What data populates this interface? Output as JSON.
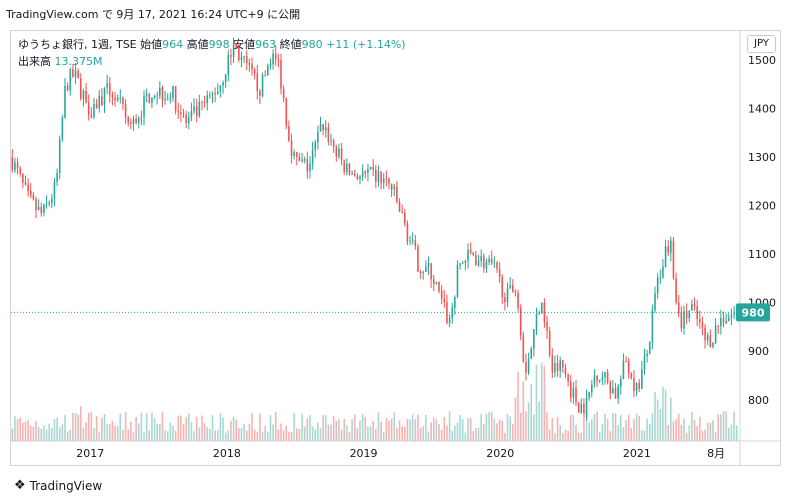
{
  "header": {
    "publish_text": "TradingView.com で 9月 17, 2021 16:24 UTC+9 に公開"
  },
  "legend": {
    "symbol": "ゆうちょ銀行, 1週, TSE",
    "open_label": "始値",
    "open_value": "964",
    "high_label": "高値",
    "high_value": "998",
    "low_label": "安値",
    "low_value": "963",
    "close_label": "終値",
    "close_value": "980",
    "change": "+11 (+1.14%)",
    "volume_label": "出来高",
    "volume_value": "13.375M"
  },
  "currency_button": "JPY",
  "footer": {
    "brand": "TradingView",
    "logo_icon": "tradingview-logo-icon"
  },
  "colors": {
    "up": "#26a69a",
    "down": "#ef5350",
    "up_vol": "#a7d8d2",
    "down_vol": "#f5b2b1",
    "last_price": "#26a69a"
  },
  "chart_data": {
    "type": "candlestick",
    "ylim": [
      715,
      1560
    ],
    "y_ticks": [
      800,
      900,
      1000,
      1100,
      1200,
      1300,
      1400,
      1500
    ],
    "x_ticks": [
      {
        "label": "2017",
        "t": 2017.0
      },
      {
        "label": "2018",
        "t": 2018.0
      },
      {
        "label": "2019",
        "t": 2019.0
      },
      {
        "label": "2020",
        "t": 2020.0
      },
      {
        "label": "2021",
        "t": 2021.0
      },
      {
        "label": "8月",
        "t": 2021.58
      }
    ],
    "t_range": [
      2016.42,
      2021.74
    ],
    "last_price": 980,
    "last_price_label": "980",
    "anchors": [
      [
        2016.42,
        1300
      ],
      [
        2016.55,
        1210
      ],
      [
        2016.65,
        1180
      ],
      [
        2016.75,
        1240
      ],
      [
        2016.82,
        1450
      ],
      [
        2016.88,
        1470
      ],
      [
        2017.0,
        1400
      ],
      [
        2017.15,
        1440
      ],
      [
        2017.3,
        1360
      ],
      [
        2017.45,
        1440
      ],
      [
        2017.6,
        1430
      ],
      [
        2017.7,
        1370
      ],
      [
        2017.85,
        1410
      ],
      [
        2017.95,
        1450
      ],
      [
        2018.05,
        1530
      ],
      [
        2018.15,
        1480
      ],
      [
        2018.25,
        1440
      ],
      [
        2018.32,
        1510
      ],
      [
        2018.38,
        1490
      ],
      [
        2018.45,
        1350
      ],
      [
        2018.5,
        1290
      ],
      [
        2018.6,
        1280
      ],
      [
        2018.7,
        1370
      ],
      [
        2018.8,
        1310
      ],
      [
        2018.88,
        1270
      ],
      [
        2019.0,
        1260
      ],
      [
        2019.1,
        1260
      ],
      [
        2019.2,
        1240
      ],
      [
        2019.3,
        1160
      ],
      [
        2019.4,
        1080
      ],
      [
        2019.5,
        1060
      ],
      [
        2019.58,
        990
      ],
      [
        2019.63,
        960
      ],
      [
        2019.7,
        1080
      ],
      [
        2019.8,
        1100
      ],
      [
        2019.95,
        1070
      ],
      [
        2020.05,
        1010
      ],
      [
        2020.12,
        1040
      ],
      [
        2020.18,
        860
      ],
      [
        2020.22,
        900
      ],
      [
        2020.3,
        1020
      ],
      [
        2020.38,
        860
      ],
      [
        2020.45,
        870
      ],
      [
        2020.55,
        800
      ],
      [
        2020.62,
        780
      ],
      [
        2020.7,
        860
      ],
      [
        2020.78,
        840
      ],
      [
        2020.85,
        810
      ],
      [
        2020.92,
        880
      ],
      [
        2021.0,
        820
      ],
      [
        2021.08,
        900
      ],
      [
        2021.15,
        1040
      ],
      [
        2021.2,
        1100
      ],
      [
        2021.25,
        1140
      ],
      [
        2021.28,
        1020
      ],
      [
        2021.33,
        960
      ],
      [
        2021.4,
        990
      ],
      [
        2021.45,
        960
      ],
      [
        2021.5,
        920
      ],
      [
        2021.55,
        930
      ],
      [
        2021.62,
        970
      ],
      [
        2021.7,
        975
      ],
      [
        2021.74,
        980
      ]
    ],
    "weeks": 276,
    "volume_baseline": "bottom of price pane"
  }
}
